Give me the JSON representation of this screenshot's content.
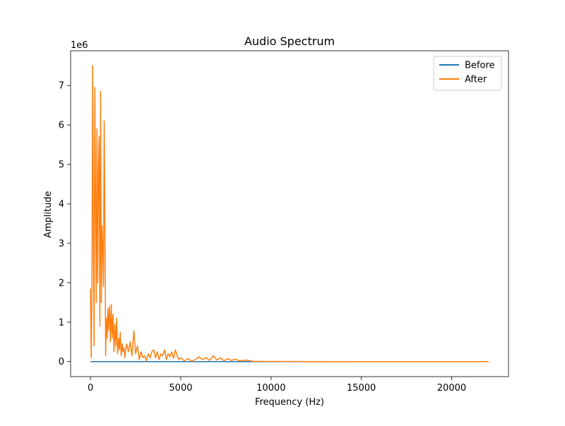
{
  "chart_data": {
    "type": "line",
    "title": "Audio Spectrum",
    "xlabel": "Frequency (Hz)",
    "ylabel": "Amplitude",
    "y_multiplier_label": "1e6",
    "xlim": [
      -1100,
      23150
    ],
    "ylim": [
      -0.38,
      7.88
    ],
    "y_unit_scale": 1000000,
    "x_ticks": [
      0,
      5000,
      10000,
      15000,
      20000
    ],
    "x_tick_labels": [
      "0",
      "5000",
      "10000",
      "15000",
      "20000"
    ],
    "y_ticks": [
      0,
      1,
      2,
      3,
      4,
      5,
      6,
      7
    ],
    "y_tick_labels": [
      "0",
      "1",
      "2",
      "3",
      "4",
      "5",
      "6",
      "7"
    ],
    "grid": false,
    "legend_position": "top-right",
    "series": [
      {
        "name": "Before",
        "color": "#1f77b4",
        "x": [
          0,
          2000,
          5000,
          8000,
          10000,
          15000,
          20000,
          22050
        ],
        "y": [
          0,
          0,
          0,
          0,
          0,
          0,
          0,
          0
        ]
      },
      {
        "name": "After",
        "color": "#ff7f0e",
        "x": [
          0,
          40,
          80,
          120,
          160,
          200,
          240,
          280,
          320,
          360,
          400,
          440,
          480,
          520,
          560,
          600,
          640,
          680,
          720,
          760,
          800,
          840,
          880,
          920,
          960,
          1000,
          1050,
          1100,
          1150,
          1200,
          1250,
          1300,
          1350,
          1400,
          1450,
          1500,
          1550,
          1600,
          1650,
          1700,
          1750,
          1800,
          1850,
          1900,
          1950,
          2000,
          2100,
          2200,
          2300,
          2400,
          2500,
          2600,
          2700,
          2800,
          2900,
          3000,
          3100,
          3200,
          3300,
          3400,
          3500,
          3600,
          3700,
          3800,
          3900,
          4000,
          4100,
          4200,
          4300,
          4400,
          4500,
          4600,
          4700,
          4800,
          4900,
          5000,
          5200,
          5400,
          5600,
          5800,
          6000,
          6200,
          6400,
          6600,
          6800,
          7000,
          7200,
          7400,
          7600,
          7800,
          8000,
          8300,
          8600,
          9000,
          10000,
          12000,
          15000,
          18000,
          20000,
          22050
        ],
        "y": [
          1.85,
          0.1,
          1.8,
          7.5,
          3.0,
          0.4,
          6.95,
          4.2,
          1.5,
          5.9,
          2.0,
          4.8,
          5.7,
          0.9,
          6.85,
          1.5,
          3.45,
          2.9,
          1.9,
          6.1,
          3.4,
          0.15,
          1.1,
          0.6,
          1.35,
          0.8,
          1.4,
          0.5,
          1.45,
          0.6,
          1.2,
          0.25,
          0.95,
          0.4,
          1.1,
          0.2,
          0.6,
          0.3,
          0.75,
          0.15,
          0.45,
          0.25,
          0.35,
          0.1,
          0.3,
          0.45,
          0.25,
          0.5,
          0.15,
          0.78,
          0.2,
          0.4,
          0.05,
          0.25,
          0.1,
          0.15,
          0.02,
          0.2,
          0.1,
          0.25,
          0.3,
          0.1,
          0.25,
          0.05,
          0.2,
          0.15,
          0.3,
          0.05,
          0.2,
          0.12,
          0.25,
          0.08,
          0.3,
          0.15,
          0.05,
          0.1,
          0.02,
          0.08,
          0.01,
          0.05,
          0.12,
          0.05,
          0.1,
          0.03,
          0.15,
          0.04,
          0.1,
          0.02,
          0.08,
          0.03,
          0.06,
          0.02,
          0.04,
          0.01,
          0.005,
          0.002,
          0.001,
          0.001,
          0.001,
          0.001
        ]
      }
    ]
  }
}
